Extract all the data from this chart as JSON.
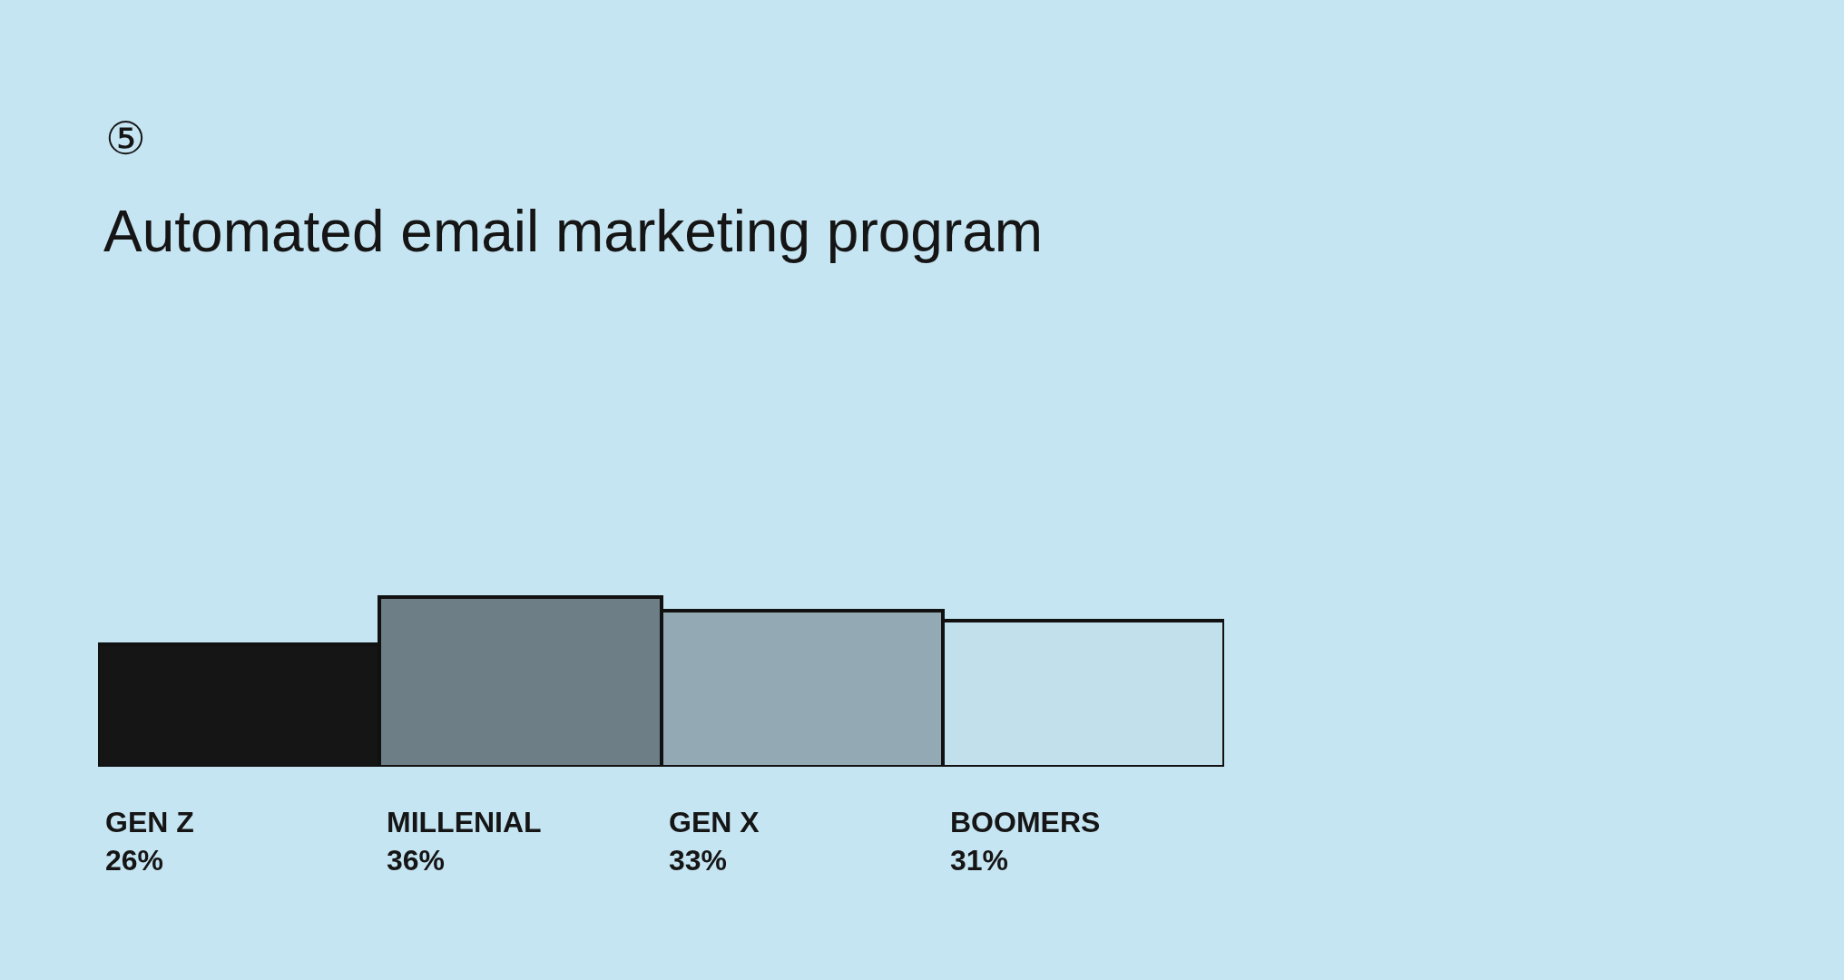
{
  "chart_data": {
    "type": "bar",
    "title": "Automated email marketing program",
    "annotations": [
      "⑤"
    ],
    "categories": [
      "GEN Z",
      "MILLENIAL",
      "GEN X",
      "BOOMERS"
    ],
    "values": [
      26,
      36,
      33,
      31
    ],
    "colors": [
      "#151515",
      "#6e7e87",
      "#93a9b3",
      "#c2dfec"
    ],
    "value_labels": [
      "26%",
      "36%",
      "33%",
      "31%"
    ]
  }
}
